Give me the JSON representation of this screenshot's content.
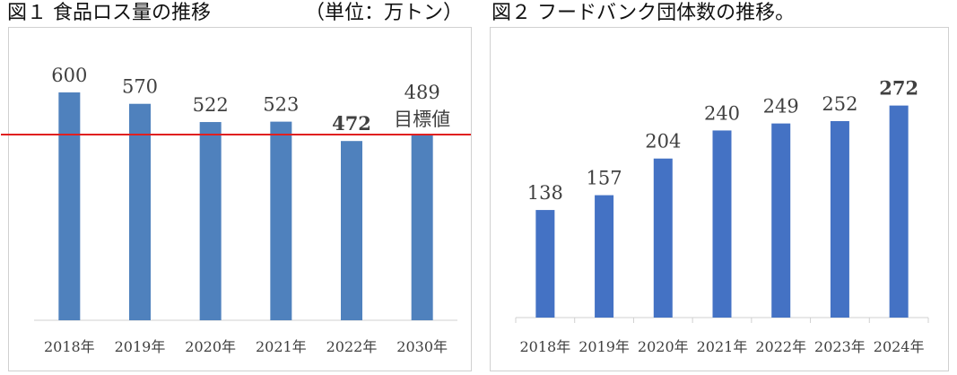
{
  "titles": {
    "fig1": "図１ 食品ロス量の推移",
    "fig1_unit": "（単位：万トン）",
    "fig2": "図２ フードバンク団体数の推移。"
  },
  "chart_data": [
    {
      "type": "bar",
      "title": "図１ 食品ロス量の推移",
      "unit": "（単位：万トン）",
      "categories": [
        "2018年",
        "2019年",
        "2020年",
        "2021年",
        "2022年",
        "2030年"
      ],
      "values": [
        600,
        570,
        522,
        523,
        472,
        489
      ],
      "value_labels": [
        "600",
        "570",
        "522",
        "523",
        "472",
        "489"
      ],
      "bold_labels": [
        false,
        false,
        false,
        false,
        true,
        false
      ],
      "extra_labels": [
        {
          "category": "2030年",
          "text": "目標値"
        }
      ],
      "reference_line": {
        "value": 489,
        "color": "#e02020"
      },
      "bar_color": "#4f81bd",
      "ylim": [
        0,
        650
      ],
      "grid": false,
      "legend": "none"
    },
    {
      "type": "bar",
      "title": "図２ フードバンク団体数の推移。",
      "categories": [
        "2018年",
        "2019年",
        "2020年",
        "2021年",
        "2022年",
        "2023年",
        "2024年"
      ],
      "values": [
        138,
        157,
        204,
        240,
        249,
        252,
        272
      ],
      "value_labels": [
        "138",
        "157",
        "204",
        "240",
        "249",
        "252",
        "272"
      ],
      "bold_labels": [
        false,
        false,
        false,
        false,
        false,
        false,
        true
      ],
      "bar_color": "#4472c4",
      "ylim": [
        0,
        300
      ],
      "grid": false,
      "legend": "none"
    }
  ]
}
